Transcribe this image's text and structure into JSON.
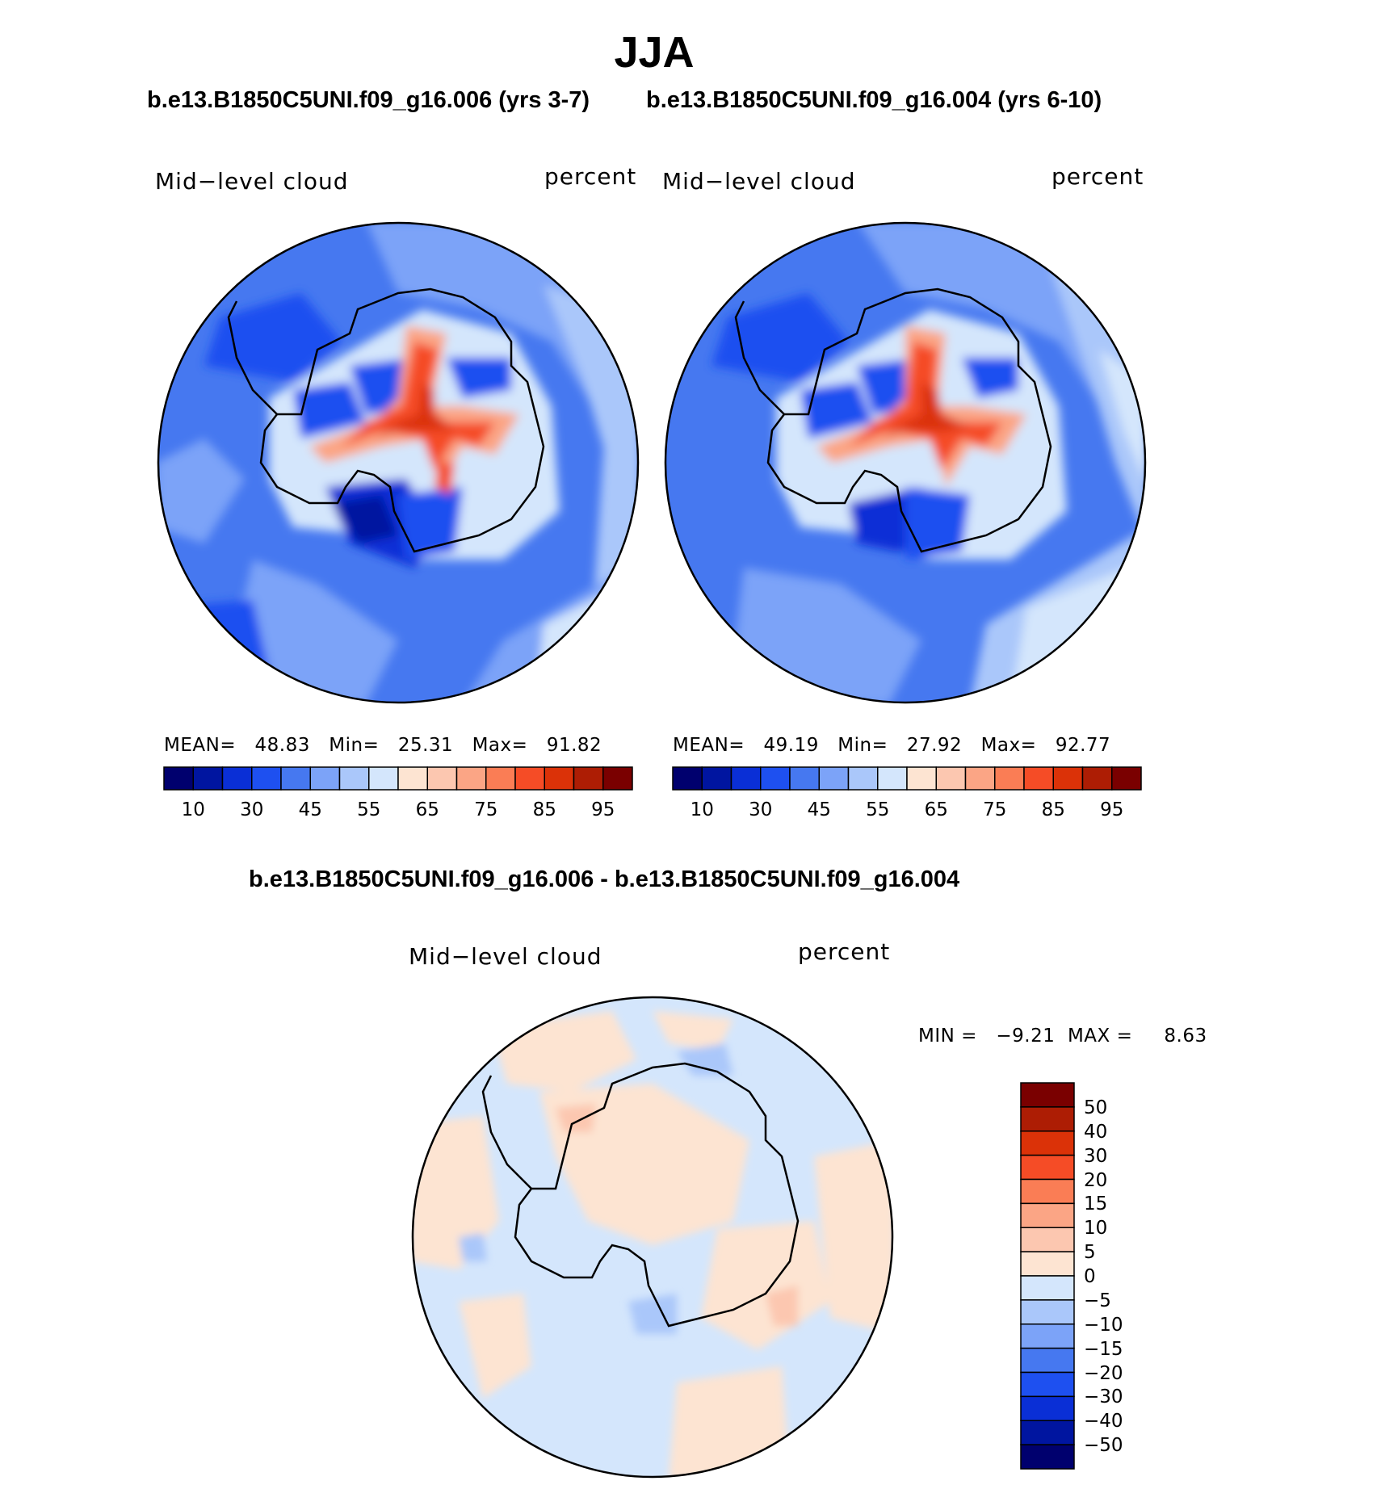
{
  "title": "JJA",
  "top_subtitle_left": "b.e13.B1850C5UNI.f09_g16.006 (yrs 3-7)",
  "top_subtitle_right": "b.e13.B1850C5UNI.f09_g16.004 (yrs 6-10)",
  "diff_subtitle": "b.e13.B1850C5UNI.f09_g16.006 - b.e13.B1850C5UNI.f09_g16.004",
  "panels": [
    {
      "variable": "Mid−level cloud",
      "units": "percent",
      "stats": "MEAN=   48.83   Min=   25.31   Max=   91.82"
    },
    {
      "variable": "Mid−level cloud",
      "units": "percent",
      "stats": "MEAN=   49.19   Min=   27.92   Max=   92.77"
    }
  ],
  "diff_panel": {
    "variable": "Mid−level cloud",
    "units": "percent",
    "minmax": "MIN =   −9.21  MAX =     8.63"
  },
  "mean_colorbar": {
    "labels": [
      "10",
      "30",
      "45",
      "55",
      "65",
      "75",
      "85",
      "95"
    ],
    "colors": [
      "#00006e",
      "#0015a0",
      "#0a2fd6",
      "#1e50f0",
      "#4678f0",
      "#7ca3f8",
      "#aac7fa",
      "#d4e6fc",
      "#fde4d2",
      "#fcc7b0",
      "#fba585",
      "#fa7d55",
      "#f54c26",
      "#db3208",
      "#ad1d04",
      "#7a0000"
    ]
  },
  "diff_colorbar": {
    "labels": [
      "50",
      "40",
      "30",
      "20",
      "15",
      "10",
      "5",
      "0",
      "−5",
      "−10",
      "−15",
      "−20",
      "−30",
      "−40",
      "−50"
    ],
    "colors": [
      "#7a0000",
      "#ad1d04",
      "#db3208",
      "#f54c26",
      "#fa7d55",
      "#fba585",
      "#fcc7b0",
      "#fde4d2",
      "#d4e6fc",
      "#aac7fa",
      "#7ca3f8",
      "#4678f0",
      "#1e50f0",
      "#0a2fd6",
      "#0015a0",
      "#00006e"
    ]
  }
}
